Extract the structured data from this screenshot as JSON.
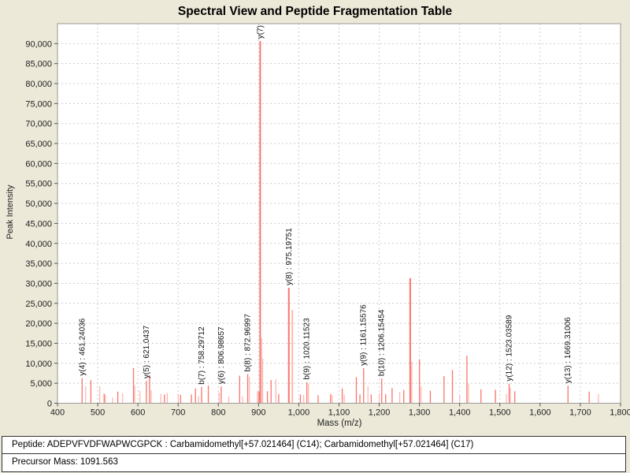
{
  "title": "Spectral View and Peptide Fragmentation Table",
  "footer": {
    "peptide_line": "Peptide: ADEPVFVDFWAPWCGPCK : Carbamidomethyl[+57.021464] (C14); Carbamidomethyl[+57.021464] (C17)",
    "precursor_line": "Precursor Mass: 1091.563"
  },
  "colors": {
    "panel_background": "#ece9d8",
    "plot_background": "#ffffff",
    "plot_border": "#999999",
    "gridline": "#cccccc",
    "bar": "#f9746c",
    "bar_light": "#fcb8b2",
    "text": "#222222"
  },
  "chart_data": {
    "type": "bar",
    "title": "Spectral View and Peptide Fragmentation Table",
    "xlabel": "Mass (m/z)",
    "ylabel": "Peak Intensity",
    "xlim": [
      400,
      1800
    ],
    "ylim": [
      0,
      95000
    ],
    "x_ticks": [
      400,
      500,
      600,
      700,
      800,
      900,
      1000,
      1100,
      1200,
      1300,
      1400,
      1500,
      1600,
      1700,
      1800
    ],
    "y_ticks": [
      0,
      5000,
      10000,
      15000,
      20000,
      25000,
      30000,
      35000,
      40000,
      45000,
      50000,
      55000,
      60000,
      65000,
      70000,
      75000,
      80000,
      85000,
      90000
    ],
    "grid": true,
    "legend": null,
    "bar_color": "#f9746c",
    "bar_color_light": "#fcb8b2",
    "peaks": [
      {
        "mz": 461.24036,
        "i": 6300,
        "label": "y(4) : 461.24036"
      },
      {
        "mz": 470,
        "i": 4300,
        "light": true
      },
      {
        "mz": 483,
        "i": 5800
      },
      {
        "mz": 505,
        "i": 4200,
        "light": true
      },
      {
        "mz": 516,
        "i": 2400
      },
      {
        "mz": 519,
        "i": 2100,
        "light": true
      },
      {
        "mz": 537,
        "i": 1400,
        "light": true
      },
      {
        "mz": 550,
        "i": 2900
      },
      {
        "mz": 562,
        "i": 2500,
        "light": true
      },
      {
        "mz": 589,
        "i": 8800
      },
      {
        "mz": 592,
        "i": 4400,
        "light": true
      },
      {
        "mz": 605,
        "i": 3100,
        "light": true
      },
      {
        "mz": 621.0437,
        "i": 5600,
        "label": "y(5) : 621.0437"
      },
      {
        "mz": 629,
        "i": 7000
      },
      {
        "mz": 633,
        "i": 3300,
        "light": true
      },
      {
        "mz": 657,
        "i": 2300,
        "light": true
      },
      {
        "mz": 666,
        "i": 2200
      },
      {
        "mz": 673,
        "i": 2600,
        "light": true
      },
      {
        "mz": 700,
        "i": 2400,
        "light": true
      },
      {
        "mz": 706,
        "i": 2100
      },
      {
        "mz": 733,
        "i": 2200
      },
      {
        "mz": 743,
        "i": 3700
      },
      {
        "mz": 751,
        "i": 1800,
        "light": true
      },
      {
        "mz": 758.29712,
        "i": 4100,
        "label": "b(7) : 758.29712"
      },
      {
        "mz": 775,
        "i": 4400
      },
      {
        "mz": 802,
        "i": 2700,
        "light": true
      },
      {
        "mz": 806.98657,
        "i": 4200,
        "label": "y(6) : 806.98657"
      },
      {
        "mz": 826,
        "i": 1700,
        "light": true
      },
      {
        "mz": 853,
        "i": 6900
      },
      {
        "mz": 860,
        "i": 1700,
        "light": true
      },
      {
        "mz": 872.96997,
        "i": 7300,
        "label": "b(8) : 872.96997"
      },
      {
        "mz": 877,
        "i": 6600,
        "light": true
      },
      {
        "mz": 897,
        "i": 3000,
        "light": true
      },
      {
        "mz": 901,
        "i": 2900
      },
      {
        "mz": 904,
        "i": 90600,
        "label": "y(7)"
      },
      {
        "mz": 907,
        "i": 16300,
        "light": true
      },
      {
        "mz": 910,
        "i": 11200,
        "light": true
      },
      {
        "mz": 922,
        "i": 3000
      },
      {
        "mz": 931,
        "i": 5800
      },
      {
        "mz": 943,
        "i": 6000,
        "light": true
      },
      {
        "mz": 950,
        "i": 2300
      },
      {
        "mz": 975.19751,
        "i": 28900,
        "label": "y(8) : 975.19751"
      },
      {
        "mz": 984,
        "i": 23300,
        "light": true
      },
      {
        "mz": 1004,
        "i": 2200
      },
      {
        "mz": 1012,
        "i": 2100,
        "light": true
      },
      {
        "mz": 1020.11523,
        "i": 5300,
        "label": "b(9) : 1020.11523"
      },
      {
        "mz": 1024,
        "i": 4900,
        "light": true
      },
      {
        "mz": 1048,
        "i": 2000
      },
      {
        "mz": 1079,
        "i": 2300
      },
      {
        "mz": 1083,
        "i": 2000,
        "light": true
      },
      {
        "mz": 1108,
        "i": 3700
      },
      {
        "mz": 1113,
        "i": 2100,
        "light": true
      },
      {
        "mz": 1143,
        "i": 6500
      },
      {
        "mz": 1152,
        "i": 2200
      },
      {
        "mz": 1161.15576,
        "i": 8800,
        "label": "y(9) : 1161.15576"
      },
      {
        "mz": 1172,
        "i": 4300,
        "light": true
      },
      {
        "mz": 1180,
        "i": 2200
      },
      {
        "mz": 1200,
        "i": 2500,
        "light": true
      },
      {
        "mz": 1206.15454,
        "i": 6200,
        "label": "b(10) : 1206.15454"
      },
      {
        "mz": 1216,
        "i": 2300
      },
      {
        "mz": 1232,
        "i": 3800
      },
      {
        "mz": 1251,
        "i": 2800,
        "light": true
      },
      {
        "mz": 1261,
        "i": 3300
      },
      {
        "mz": 1277,
        "i": 31300
      },
      {
        "mz": 1281,
        "i": 10400,
        "light": true
      },
      {
        "mz": 1300,
        "i": 10900
      },
      {
        "mz": 1304,
        "i": 4200,
        "light": true
      },
      {
        "mz": 1327,
        "i": 3100
      },
      {
        "mz": 1361,
        "i": 6800
      },
      {
        "mz": 1382,
        "i": 8300
      },
      {
        "mz": 1400,
        "i": 2000,
        "light": true
      },
      {
        "mz": 1418,
        "i": 11900
      },
      {
        "mz": 1422,
        "i": 4800,
        "light": true
      },
      {
        "mz": 1453,
        "i": 3500
      },
      {
        "mz": 1489,
        "i": 3400
      },
      {
        "mz": 1516,
        "i": 2300,
        "light": true
      },
      {
        "mz": 1523.03589,
        "i": 4900,
        "label": "y(12) : 1523.03589"
      },
      {
        "mz": 1526,
        "i": 3900,
        "light": true
      },
      {
        "mz": 1537,
        "i": 3000
      },
      {
        "mz": 1669.31006,
        "i": 4400,
        "label": "y(13) : 1669.31006"
      },
      {
        "mz": 1722,
        "i": 2900
      },
      {
        "mz": 1745,
        "i": 2300,
        "light": true
      }
    ]
  }
}
